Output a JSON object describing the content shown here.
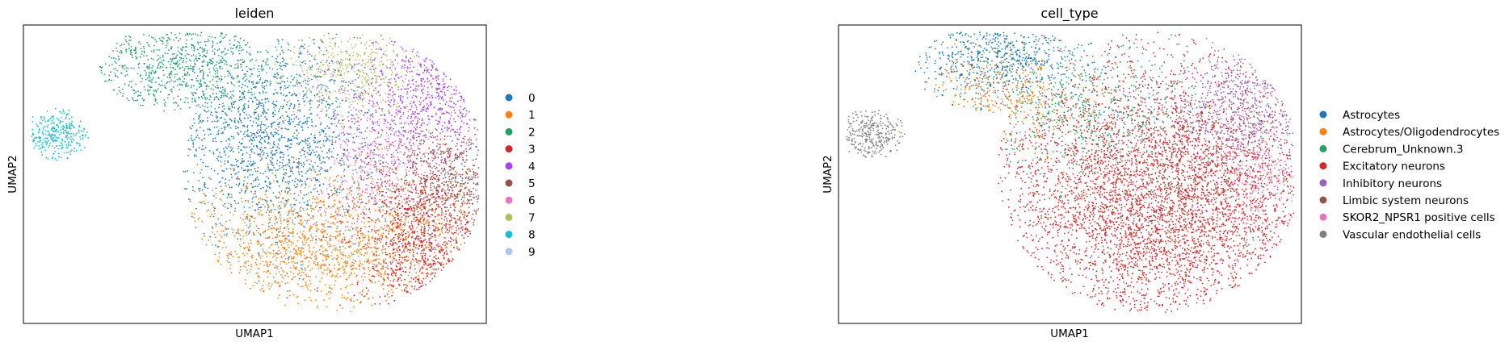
{
  "chart_data": [
    {
      "type": "scatter",
      "title": "leiden",
      "xlabel": "UMAP1",
      "ylabel": "UMAP2",
      "grid": false,
      "legend": "right",
      "legend_entries": [
        "0",
        "1",
        "2",
        "3",
        "4",
        "5",
        "6",
        "7",
        "8",
        "9"
      ],
      "colors": [
        "#1f77b4",
        "#ff7f0e",
        "#279e68",
        "#d62728",
        "#aa40fc",
        "#8c564b",
        "#e377c2",
        "#b5bd61",
        "#17becf",
        "#aec7e8"
      ],
      "clusters": [
        {
          "label": "0",
          "cx": -0.35,
          "cy": 0.25,
          "sx": 0.33,
          "sy": 0.32,
          "n": 1500
        },
        {
          "label": "1",
          "cx": -0.05,
          "cy": -0.45,
          "sx": 0.48,
          "sy": 0.22,
          "n": 1500
        },
        {
          "label": "2",
          "cx": -0.95,
          "cy": 0.78,
          "sx": 0.4,
          "sy": 0.22,
          "n": 900
        },
        {
          "label": "3",
          "cx": 0.62,
          "cy": -0.42,
          "sx": 0.22,
          "sy": 0.28,
          "n": 1000
        },
        {
          "label": "4",
          "cx": 0.65,
          "cy": 0.55,
          "sx": 0.28,
          "sy": 0.22,
          "n": 700
        },
        {
          "label": "5",
          "cx": 0.8,
          "cy": 0.0,
          "sx": 0.18,
          "sy": 0.18,
          "n": 500
        },
        {
          "label": "6",
          "cx": 0.3,
          "cy": 0.1,
          "sx": 0.2,
          "sy": 0.22,
          "n": 450
        },
        {
          "label": "7",
          "cx": 0.18,
          "cy": 0.72,
          "sx": 0.22,
          "sy": 0.16,
          "n": 400
        },
        {
          "label": "8",
          "cx": -1.78,
          "cy": 0.3,
          "sx": 0.12,
          "sy": 0.1,
          "n": 300
        },
        {
          "label": "9",
          "cx": 0.0,
          "cy": 0.0,
          "sx": 0.05,
          "sy": 0.05,
          "n": 0
        }
      ]
    },
    {
      "type": "scatter",
      "title": "cell_type",
      "xlabel": "UMAP1",
      "ylabel": "UMAP2",
      "grid": false,
      "legend": "right",
      "legend_entries": [
        "Astrocytes",
        "Astrocytes/Oligodendrocytes",
        "Cerebrum_Unknown.3",
        "Excitatory neurons",
        "Inhibitory neurons",
        "Limbic system neurons",
        "SKOR2_NPSR1 positive cells",
        "Vascular endothelial cells"
      ],
      "colors": [
        "#1f77b4",
        "#ff7f0e",
        "#279e68",
        "#d62728",
        "#9467bd",
        "#8c564b",
        "#e377c2",
        "#7f7f7f"
      ],
      "clusters": [
        {
          "label": "Astrocytes",
          "cx": -0.95,
          "cy": 0.85,
          "sx": 0.3,
          "sy": 0.15,
          "n": 600
        },
        {
          "label": "Astrocytes/Oligodendrocytes",
          "cx": -0.9,
          "cy": 0.55,
          "sx": 0.28,
          "sy": 0.18,
          "n": 350
        },
        {
          "label": "Cerebrum_Unknown.3",
          "cx": -0.4,
          "cy": 0.45,
          "sx": 0.35,
          "sy": 0.25,
          "n": 650
        },
        {
          "label": "Excitatory neurons",
          "cx": 0.15,
          "cy": -0.15,
          "sx": 0.55,
          "sy": 0.45,
          "n": 4600
        },
        {
          "label": "Inhibitory neurons",
          "cx": 0.7,
          "cy": 0.5,
          "sx": 0.25,
          "sy": 0.18,
          "n": 550
        },
        {
          "label": "Limbic system neurons",
          "cx": 0.55,
          "cy": 0.1,
          "sx": 0.2,
          "sy": 0.2,
          "n": 120
        },
        {
          "label": "SKOR2_NPSR1 positive cells",
          "cx": 0.8,
          "cy": 0.05,
          "sx": 0.14,
          "sy": 0.16,
          "n": 200
        },
        {
          "label": "Vascular endothelial cells",
          "cx": -1.78,
          "cy": 0.3,
          "sx": 0.12,
          "sy": 0.1,
          "n": 300
        }
      ]
    }
  ]
}
